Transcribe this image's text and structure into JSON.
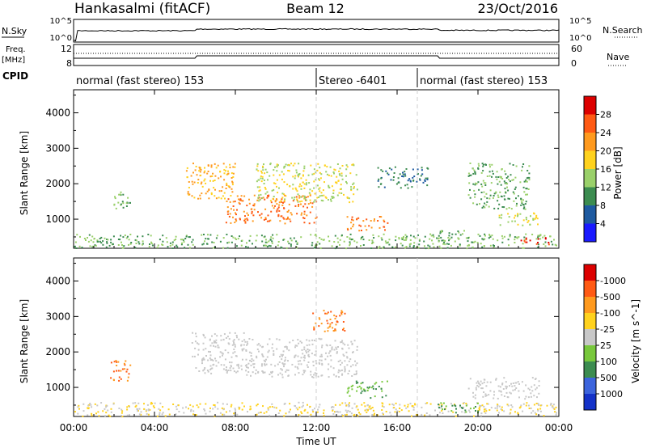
{
  "header": {
    "station": "Hankasalmi (fitACF)",
    "beam": "Beam 12",
    "date": "23/Oct/2016"
  },
  "noise_panel": {
    "left_label": "N.Sky",
    "left_top": "10^5",
    "left_bottom": "10^0",
    "right_top": "10^5",
    "right_bottom": "10^0",
    "right_label": "N.Search"
  },
  "freq_panel": {
    "left_label_1": "Freq.",
    "left_label_2": "[MHz]",
    "left_top": "12",
    "left_bottom": "8",
    "right_top": "60",
    "right_bottom": "0",
    "right_label": "Nave"
  },
  "cpid_panel": {
    "label": "CPID",
    "segments": [
      {
        "text": "normal (fast stereo) 153",
        "start": 0,
        "end": 12
      },
      {
        "text": "Stereo -6401",
        "start": 12,
        "end": 17
      },
      {
        "text": "normal (fast stereo) 153",
        "start": 17,
        "end": 24
      }
    ]
  },
  "chart_data": [
    {
      "type": "heatmap",
      "ylabel": "Slant Range [km]",
      "yticks": [
        "1000",
        "2000",
        "3000",
        "4000"
      ],
      "ylim": [
        180,
        4650
      ],
      "xlim": [
        0,
        24
      ],
      "colorbar_label": "Power [dB]",
      "colorbar_ticks": [
        "4",
        "8",
        "12",
        "16",
        "20",
        "24",
        "28"
      ],
      "colorbar_colors": [
        "#1a1aff",
        "#1e5aa0",
        "#3c8c50",
        "#9ad06a",
        "#ffd21e",
        "#ff9a1e",
        "#ff5a14",
        "#dc0000"
      ],
      "features": [
        {
          "x": [
            0,
            24
          ],
          "y": [
            200,
            600
          ],
          "value": 12
        },
        {
          "x": [
            1.8,
            2.8
          ],
          "y": [
            1300,
            1800
          ],
          "value": 12
        },
        {
          "x": [
            5.5,
            8.0
          ],
          "y": [
            1600,
            2600
          ],
          "value": 20
        },
        {
          "x": [
            7.5,
            12.0
          ],
          "y": [
            900,
            1700
          ],
          "value": 24
        },
        {
          "x": [
            9.0,
            14.0
          ],
          "y": [
            1500,
            2600
          ],
          "value": 16
        },
        {
          "x": [
            13.5,
            15.5
          ],
          "y": [
            700,
            1100
          ],
          "value": 24
        },
        {
          "x": [
            15.0,
            17.5
          ],
          "y": [
            1900,
            2500
          ],
          "value": 8
        },
        {
          "x": [
            18.0,
            19.5
          ],
          "y": [
            400,
            700
          ],
          "value": 12
        },
        {
          "x": [
            19.5,
            22.5
          ],
          "y": [
            1300,
            2600
          ],
          "value": 12
        },
        {
          "x": [
            21.0,
            23.0
          ],
          "y": [
            800,
            1200
          ],
          "value": 16
        },
        {
          "x": [
            22.0,
            23.5
          ],
          "y": [
            300,
            500
          ],
          "value": 28
        }
      ]
    },
    {
      "type": "heatmap",
      "ylabel": "Slant Range [km]",
      "yticks": [
        "1000",
        "2000",
        "3000",
        "4000"
      ],
      "ylim": [
        180,
        4650
      ],
      "xlim": [
        0,
        24
      ],
      "xlabel": "Time UT",
      "xticks": [
        "00:00",
        "04:00",
        "08:00",
        "12:00",
        "16:00",
        "20:00",
        "00:00"
      ],
      "colorbar_label": "Velocity [m s^-1]",
      "colorbar_ticks": [
        "1000",
        "500",
        "100",
        "25",
        "-25",
        "-100",
        "-500",
        "-1000"
      ],
      "colorbar_colors": [
        "#1432c8",
        "#3c64dc",
        "#3c8c50",
        "#78c83c",
        "#c8c8c8",
        "#ffd21e",
        "#ff9a1e",
        "#ff5a14",
        "#dc0000"
      ],
      "features": [
        {
          "x": [
            0,
            24
          ],
          "y": [
            200,
            600
          ],
          "value": -25
        },
        {
          "x": [
            1.8,
            2.8
          ],
          "y": [
            1200,
            1800
          ],
          "value": -500
        },
        {
          "x": [
            5.8,
            8.5
          ],
          "y": [
            1400,
            2600
          ],
          "value": 0
        },
        {
          "x": [
            8.5,
            14.0
          ],
          "y": [
            1300,
            2400
          ],
          "value": 0
        },
        {
          "x": [
            11.8,
            13.5
          ],
          "y": [
            2600,
            3200
          ],
          "value": -500
        },
        {
          "x": [
            13.5,
            15.5
          ],
          "y": [
            700,
            1200
          ],
          "value": 100
        },
        {
          "x": [
            18.0,
            20.0
          ],
          "y": [
            300,
            600
          ],
          "value": 100
        },
        {
          "x": [
            19.5,
            23.0
          ],
          "y": [
            700,
            1300
          ],
          "value": 0
        }
      ]
    }
  ]
}
